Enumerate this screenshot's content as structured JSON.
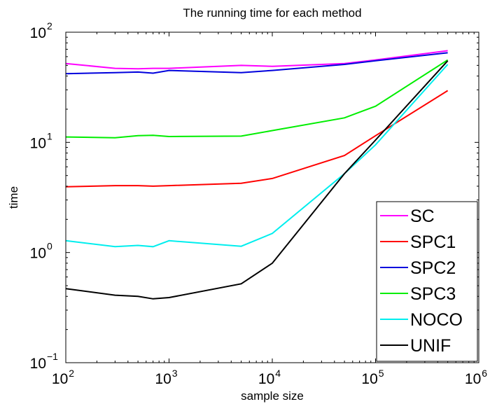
{
  "chart_data": {
    "type": "line",
    "title": "The running time for each method",
    "xlabel": "sample size",
    "ylabel": "time",
    "xscale": "log",
    "yscale": "log",
    "xlim": [
      100,
      1000000
    ],
    "ylim": [
      0.1,
      100
    ],
    "grid": false,
    "legend_position": "bottom-right",
    "x_ticks": [
      {
        "value": 100,
        "base": "10",
        "exp": "2"
      },
      {
        "value": 1000,
        "base": "10",
        "exp": "3"
      },
      {
        "value": 10000,
        "base": "10",
        "exp": "4"
      },
      {
        "value": 100000,
        "base": "10",
        "exp": "5"
      },
      {
        "value": 1000000,
        "base": "10",
        "exp": "6"
      }
    ],
    "y_ticks": [
      {
        "value": 0.1,
        "base": "10",
        "exp": "−1"
      },
      {
        "value": 1,
        "base": "10",
        "exp": "0"
      },
      {
        "value": 10,
        "base": "10",
        "exp": "1"
      },
      {
        "value": 100,
        "base": "10",
        "exp": "2"
      }
    ],
    "series": [
      {
        "name": "SC",
        "color": "#ff00ff",
        "x": [
          100,
          300,
          500,
          700,
          1000,
          5000,
          10000,
          50000,
          100000,
          500000
        ],
        "y": [
          52,
          47,
          46.5,
          47,
          47,
          50,
          49,
          52,
          56,
          68
        ]
      },
      {
        "name": "SPC1",
        "color": "#ff0000",
        "x": [
          100,
          300,
          500,
          700,
          1000,
          5000,
          10000,
          50000,
          100000,
          500000
        ],
        "y": [
          3.95,
          4.05,
          4.05,
          4.0,
          4.05,
          4.25,
          4.7,
          7.6,
          11.5,
          29.5
        ]
      },
      {
        "name": "SPC2",
        "color": "#0000dd",
        "x": [
          100,
          300,
          500,
          700,
          1000,
          5000,
          10000,
          50000,
          100000,
          500000
        ],
        "y": [
          42,
          43,
          43.5,
          42.5,
          45,
          43,
          45,
          51,
          55,
          65
        ]
      },
      {
        "name": "SPC3",
        "color": "#00ee00",
        "x": [
          100,
          300,
          500,
          700,
          1000,
          5000,
          10000,
          50000,
          100000,
          500000
        ],
        "y": [
          11.2,
          11.0,
          11.5,
          11.6,
          11.3,
          11.4,
          12.8,
          16.7,
          21.3,
          56
        ]
      },
      {
        "name": "NOCO",
        "color": "#00eeee",
        "x": [
          100,
          300,
          500,
          700,
          1000,
          5000,
          10000,
          50000,
          100000,
          500000
        ],
        "y": [
          1.28,
          1.13,
          1.16,
          1.13,
          1.28,
          1.14,
          1.49,
          5.2,
          9.5,
          51
        ]
      },
      {
        "name": "UNIF",
        "color": "#000000",
        "x": [
          100,
          300,
          500,
          700,
          1000,
          5000,
          10000,
          50000,
          100000,
          500000
        ],
        "y": [
          0.47,
          0.41,
          0.4,
          0.38,
          0.39,
          0.52,
          0.8,
          5.2,
          10.5,
          55
        ]
      }
    ]
  }
}
